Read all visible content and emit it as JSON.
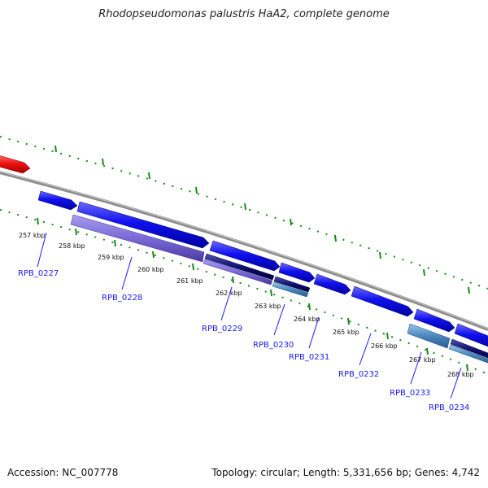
{
  "title": "Rhodopseudomonas palustris HaA2, complete genome",
  "accession": "Accession: NC_007778",
  "summary": "Topology: circular; Length: 5,331,656 bp; Genes: 4,742",
  "scale_labels": [
    "257 kbp",
    "258 kbp",
    "259 kbp",
    "260 kbp",
    "261 kbp",
    "262 kbp",
    "263 kbp",
    "264 kbp",
    "265 kbp",
    "266 kbp",
    "267 kbp",
    "268 kbp"
  ],
  "gene_labels": [
    "RPB_0227",
    "RPB_0228",
    "RPB_0229",
    "RPB_0230",
    "RPB_0231",
    "RPB_0232",
    "RPB_0233",
    "RPB_0234"
  ],
  "colors": {
    "backbone": "#8a8a8a",
    "cds_forward": "#1010e8",
    "cds_other": "#e81010",
    "gene_track": "#7a6ad8",
    "tick": "#1a8a1a",
    "label": "#1a1aff"
  }
}
